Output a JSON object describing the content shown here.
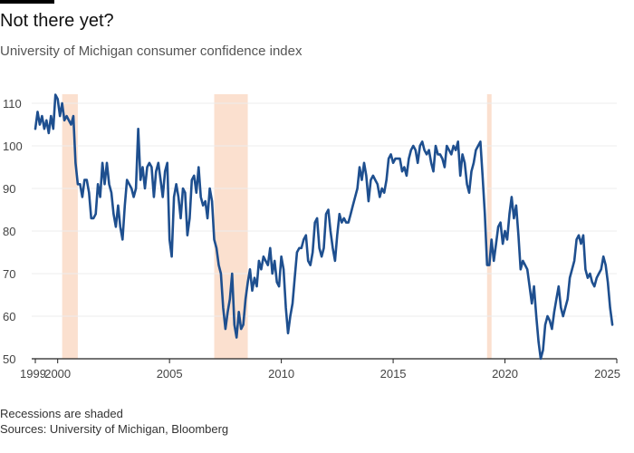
{
  "header": {
    "title": "Not there yet?",
    "subtitle": "University of Michigan consumer confidence index"
  },
  "footer": {
    "note": "Recessions are shaded",
    "source": "Sources: University of Michigan, Bloomberg"
  },
  "colors": {
    "line": "#1e4f8f",
    "recession": "#fbe0cf",
    "grid": "#ececec",
    "axis": "#222222"
  },
  "chart_data": {
    "type": "line",
    "title": "Not there yet?",
    "subtitle": "University of Michigan consumer confidence index",
    "xlabel": "",
    "ylabel": "",
    "xlim": [
      1999,
      2025
    ],
    "ylim": [
      50,
      110
    ],
    "x_ticks": [
      {
        "value": 1999,
        "label": "1999"
      },
      {
        "value": 2000,
        "label": "2000"
      },
      {
        "value": 2005,
        "label": "2005"
      },
      {
        "value": 2010,
        "label": "2010"
      },
      {
        "value": 2015,
        "label": "2015"
      },
      {
        "value": 2020,
        "label": "2020"
      },
      {
        "value": 2025,
        "label": "2025"
      }
    ],
    "y_ticks": [
      50,
      60,
      70,
      80,
      90,
      100,
      110
    ],
    "grid": "horizontal",
    "recessions": [
      {
        "start": 2000.2,
        "end": 2000.9
      },
      {
        "start": 2007.0,
        "end": 2008.5
      },
      {
        "start": 2019.2,
        "end": 2019.4
      }
    ],
    "series": [
      {
        "points": [
          [
            1999.0,
            104
          ],
          [
            1999.1,
            108
          ],
          [
            1999.2,
            105
          ],
          [
            1999.3,
            107
          ],
          [
            1999.4,
            104
          ],
          [
            1999.5,
            106
          ],
          [
            1999.6,
            103
          ],
          [
            1999.7,
            107
          ],
          [
            1999.8,
            104
          ],
          [
            1999.9,
            112
          ],
          [
            2000.0,
            111
          ],
          [
            2000.1,
            107
          ],
          [
            2000.2,
            110
          ],
          [
            2000.3,
            106
          ],
          [
            2000.4,
            107
          ],
          [
            2000.5,
            106
          ],
          [
            2000.6,
            105
          ],
          [
            2000.7,
            107
          ],
          [
            2000.8,
            96
          ],
          [
            2000.9,
            91
          ],
          [
            2001.0,
            91
          ],
          [
            2001.1,
            88
          ],
          [
            2001.2,
            92
          ],
          [
            2001.3,
            92
          ],
          [
            2001.4,
            89
          ],
          [
            2001.5,
            83
          ],
          [
            2001.6,
            83
          ],
          [
            2001.7,
            84
          ],
          [
            2001.8,
            91
          ],
          [
            2001.9,
            88
          ],
          [
            2002.0,
            96
          ],
          [
            2002.1,
            91
          ],
          [
            2002.2,
            96
          ],
          [
            2002.3,
            91
          ],
          [
            2002.4,
            89
          ],
          [
            2002.5,
            84
          ],
          [
            2002.6,
            81
          ],
          [
            2002.7,
            86
          ],
          [
            2002.8,
            81
          ],
          [
            2002.9,
            78
          ],
          [
            2003.0,
            86
          ],
          [
            2003.1,
            92
          ],
          [
            2003.2,
            91
          ],
          [
            2003.3,
            90
          ],
          [
            2003.4,
            88
          ],
          [
            2003.5,
            90
          ],
          [
            2003.6,
            104
          ],
          [
            2003.7,
            92
          ],
          [
            2003.8,
            95
          ],
          [
            2003.9,
            90
          ],
          [
            2004.0,
            95
          ],
          [
            2004.1,
            96
          ],
          [
            2004.2,
            95
          ],
          [
            2004.3,
            88
          ],
          [
            2004.4,
            94
          ],
          [
            2004.5,
            96
          ],
          [
            2004.6,
            92
          ],
          [
            2004.7,
            88
          ],
          [
            2004.8,
            94
          ],
          [
            2004.9,
            96
          ],
          [
            2005.0,
            78
          ],
          [
            2005.1,
            74
          ],
          [
            2005.2,
            88
          ],
          [
            2005.3,
            91
          ],
          [
            2005.4,
            88
          ],
          [
            2005.5,
            83
          ],
          [
            2005.6,
            90
          ],
          [
            2005.7,
            89
          ],
          [
            2005.8,
            79
          ],
          [
            2005.9,
            83
          ],
          [
            2006.0,
            92
          ],
          [
            2006.1,
            93
          ],
          [
            2006.2,
            89
          ],
          [
            2006.3,
            95
          ],
          [
            2006.4,
            88
          ],
          [
            2006.5,
            86
          ],
          [
            2006.6,
            87
          ],
          [
            2006.7,
            83
          ],
          [
            2006.8,
            90
          ],
          [
            2006.9,
            87
          ],
          [
            2007.0,
            78
          ],
          [
            2007.1,
            76
          ],
          [
            2007.2,
            72
          ],
          [
            2007.3,
            70
          ],
          [
            2007.4,
            62
          ],
          [
            2007.5,
            57
          ],
          [
            2007.6,
            61
          ],
          [
            2007.7,
            64
          ],
          [
            2007.8,
            70
          ],
          [
            2007.9,
            58
          ],
          [
            2008.0,
            55
          ],
          [
            2008.1,
            61
          ],
          [
            2008.2,
            57
          ],
          [
            2008.3,
            58
          ],
          [
            2008.4,
            64
          ],
          [
            2008.5,
            68
          ],
          [
            2008.6,
            71
          ],
          [
            2008.7,
            66
          ],
          [
            2008.8,
            69
          ],
          [
            2008.9,
            67
          ],
          [
            2009.0,
            73
          ],
          [
            2009.1,
            71
          ],
          [
            2009.2,
            74
          ],
          [
            2009.3,
            73
          ],
          [
            2009.4,
            72
          ],
          [
            2009.5,
            76
          ],
          [
            2009.6,
            70
          ],
          [
            2009.7,
            73
          ],
          [
            2009.8,
            68
          ],
          [
            2009.9,
            67
          ],
          [
            2010.0,
            74
          ],
          [
            2010.1,
            71
          ],
          [
            2010.2,
            62
          ],
          [
            2010.3,
            56
          ],
          [
            2010.4,
            60
          ],
          [
            2010.5,
            63
          ],
          [
            2010.6,
            69
          ],
          [
            2010.7,
            75
          ],
          [
            2010.8,
            76
          ],
          [
            2010.9,
            76
          ],
          [
            2011.0,
            78
          ],
          [
            2011.1,
            79
          ],
          [
            2011.2,
            73
          ],
          [
            2011.3,
            72
          ],
          [
            2011.4,
            75
          ],
          [
            2011.5,
            82
          ],
          [
            2011.6,
            83
          ],
          [
            2011.7,
            76
          ],
          [
            2011.8,
            74
          ],
          [
            2011.9,
            76
          ],
          [
            2012.0,
            84
          ],
          [
            2012.1,
            85
          ],
          [
            2012.2,
            80
          ],
          [
            2012.3,
            76
          ],
          [
            2012.4,
            73
          ],
          [
            2012.5,
            79
          ],
          [
            2012.6,
            84
          ],
          [
            2012.7,
            82
          ],
          [
            2012.8,
            83
          ],
          [
            2012.9,
            82
          ],
          [
            2013.0,
            82
          ],
          [
            2013.1,
            84
          ],
          [
            2013.2,
            86
          ],
          [
            2013.3,
            88
          ],
          [
            2013.4,
            90
          ],
          [
            2013.5,
            95
          ],
          [
            2013.6,
            92
          ],
          [
            2013.7,
            96
          ],
          [
            2013.8,
            93
          ],
          [
            2013.9,
            87
          ],
          [
            2014.0,
            92
          ],
          [
            2014.1,
            93
          ],
          [
            2014.2,
            92
          ],
          [
            2014.3,
            91
          ],
          [
            2014.4,
            88
          ],
          [
            2014.5,
            90
          ],
          [
            2014.6,
            89
          ],
          [
            2014.7,
            92
          ],
          [
            2014.8,
            97
          ],
          [
            2014.9,
            98
          ],
          [
            2015.0,
            96
          ],
          [
            2015.1,
            97
          ],
          [
            2015.2,
            97
          ],
          [
            2015.3,
            97
          ],
          [
            2015.4,
            94
          ],
          [
            2015.5,
            95
          ],
          [
            2015.6,
            93
          ],
          [
            2015.7,
            97
          ],
          [
            2015.8,
            99
          ],
          [
            2015.9,
            100
          ],
          [
            2016.0,
            99
          ],
          [
            2016.1,
            96
          ],
          [
            2016.2,
            100
          ],
          [
            2016.3,
            101
          ],
          [
            2016.4,
            99
          ],
          [
            2016.5,
            98
          ],
          [
            2016.6,
            99
          ],
          [
            2016.7,
            96
          ],
          [
            2016.8,
            94
          ],
          [
            2016.9,
            100
          ],
          [
            2017.0,
            98
          ],
          [
            2017.1,
            98
          ],
          [
            2017.2,
            97
          ],
          [
            2017.3,
            95
          ],
          [
            2017.4,
            100
          ],
          [
            2017.5,
            99
          ],
          [
            2017.6,
            98
          ],
          [
            2017.7,
            100
          ],
          [
            2017.8,
            99
          ],
          [
            2017.9,
            101
          ],
          [
            2018.0,
            93
          ],
          [
            2018.1,
            98
          ],
          [
            2018.2,
            96
          ],
          [
            2018.3,
            91
          ],
          [
            2018.4,
            89
          ],
          [
            2018.5,
            94
          ],
          [
            2018.6,
            96
          ],
          [
            2018.7,
            99
          ],
          [
            2018.8,
            100
          ],
          [
            2018.9,
            101
          ],
          [
            2019.0,
            93
          ],
          [
            2019.1,
            84
          ],
          [
            2019.2,
            72
          ],
          [
            2019.3,
            72
          ],
          [
            2019.4,
            78
          ],
          [
            2019.5,
            73
          ],
          [
            2019.6,
            77
          ],
          [
            2019.7,
            81
          ],
          [
            2019.8,
            82
          ],
          [
            2019.9,
            77
          ],
          [
            2020.0,
            80
          ],
          [
            2020.1,
            78
          ],
          [
            2020.2,
            84
          ],
          [
            2020.3,
            88
          ],
          [
            2020.4,
            83
          ],
          [
            2020.5,
            86
          ],
          [
            2020.6,
            79
          ],
          [
            2020.7,
            71
          ],
          [
            2020.8,
            73
          ],
          [
            2020.9,
            72
          ],
          [
            2021.0,
            71
          ],
          [
            2021.1,
            67
          ],
          [
            2021.2,
            63
          ],
          [
            2021.3,
            67
          ],
          [
            2021.4,
            60
          ],
          [
            2021.5,
            54
          ],
          [
            2021.6,
            50
          ],
          [
            2021.7,
            52
          ],
          [
            2021.8,
            58
          ],
          [
            2021.9,
            60
          ],
          [
            2022.0,
            59
          ],
          [
            2022.1,
            57
          ],
          [
            2022.2,
            61
          ],
          [
            2022.3,
            64
          ],
          [
            2022.4,
            67
          ],
          [
            2022.5,
            62
          ],
          [
            2022.6,
            60
          ],
          [
            2022.7,
            62
          ],
          [
            2022.8,
            64
          ],
          [
            2022.9,
            69
          ],
          [
            2023.0,
            71
          ],
          [
            2023.1,
            73
          ],
          [
            2023.2,
            78
          ],
          [
            2023.3,
            79
          ],
          [
            2023.4,
            77
          ],
          [
            2023.5,
            79
          ],
          [
            2023.6,
            71
          ],
          [
            2023.7,
            69
          ],
          [
            2023.8,
            70
          ],
          [
            2023.9,
            68
          ],
          [
            2024.0,
            67
          ],
          [
            2024.1,
            69
          ],
          [
            2024.2,
            70
          ],
          [
            2024.3,
            71
          ],
          [
            2024.4,
            74
          ],
          [
            2024.5,
            72
          ],
          [
            2024.6,
            68
          ],
          [
            2024.7,
            62
          ],
          [
            2024.8,
            58
          ]
        ]
      }
    ]
  }
}
